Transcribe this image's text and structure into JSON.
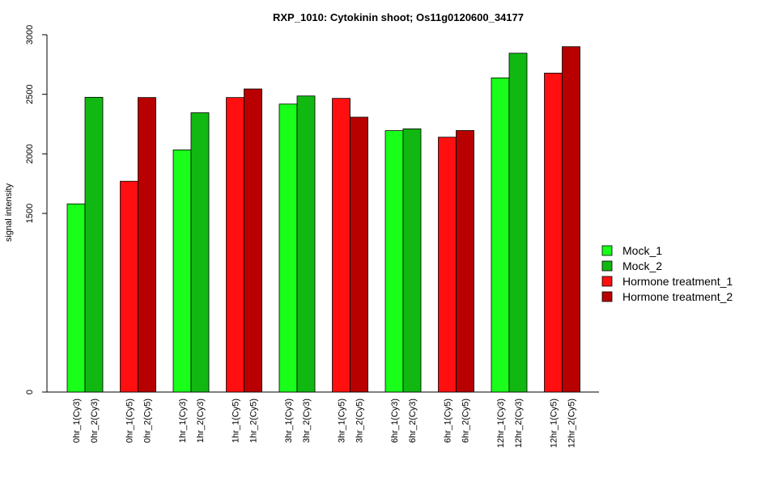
{
  "chart_data": {
    "type": "bar",
    "title": "RXP_1010: Cytokinin shoot; Os11g0120600_34177",
    "xlabel": "",
    "ylabel": "signal intensity",
    "ylim": [
      0,
      3000
    ],
    "yticks": [
      0,
      1500,
      2000,
      2500,
      3000
    ],
    "bar_groups": [
      [
        {
          "label": "0hr_1(Cy3)",
          "value": 1580,
          "series": 0
        },
        {
          "label": "0hr_2(Cy3)",
          "value": 2475,
          "series": 1
        }
      ],
      [
        {
          "label": "0hr_1(Cy5)",
          "value": 1770,
          "series": 2
        },
        {
          "label": "0hr_2(Cy5)",
          "value": 2473,
          "series": 3
        }
      ],
      [
        {
          "label": "1hr_1(Cy3)",
          "value": 2033,
          "series": 0
        },
        {
          "label": "1hr_2(Cy3)",
          "value": 2345,
          "series": 1
        }
      ],
      [
        {
          "label": "1hr_1(Cy5)",
          "value": 2473,
          "series": 2
        },
        {
          "label": "1hr_2(Cy5)",
          "value": 2545,
          "series": 3
        }
      ],
      [
        {
          "label": "3hr_1(Cy3)",
          "value": 2418,
          "series": 0
        },
        {
          "label": "3hr_2(Cy3)",
          "value": 2486,
          "series": 1
        }
      ],
      [
        {
          "label": "3hr_1(Cy5)",
          "value": 2466,
          "series": 2
        },
        {
          "label": "3hr_2(Cy5)",
          "value": 2308,
          "series": 3
        }
      ],
      [
        {
          "label": "6hr_1(Cy3)",
          "value": 2195,
          "series": 0
        },
        {
          "label": "6hr_2(Cy3)",
          "value": 2210,
          "series": 1
        }
      ],
      [
        {
          "label": "6hr_1(Cy5)",
          "value": 2140,
          "series": 2
        },
        {
          "label": "6hr_2(Cy5)",
          "value": 2196,
          "series": 3
        }
      ],
      [
        {
          "label": "12hr_1(Cy3)",
          "value": 2638,
          "series": 0
        },
        {
          "label": "12hr_2(Cy3)",
          "value": 2845,
          "series": 1
        }
      ],
      [
        {
          "label": "12hr_1(Cy5)",
          "value": 2678,
          "series": 2
        },
        {
          "label": "12hr_2(Cy5)",
          "value": 2900,
          "series": 3
        }
      ]
    ],
    "series": [
      {
        "name": "Mock_1",
        "color": "#19ff19"
      },
      {
        "name": "Mock_2",
        "color": "#12b812"
      },
      {
        "name": "Hormone treatment_1",
        "color": "#ff0f0f"
      },
      {
        "name": "Hormone treatment_2",
        "color": "#b80000"
      }
    ],
    "legend_position": "right",
    "grid": false
  }
}
